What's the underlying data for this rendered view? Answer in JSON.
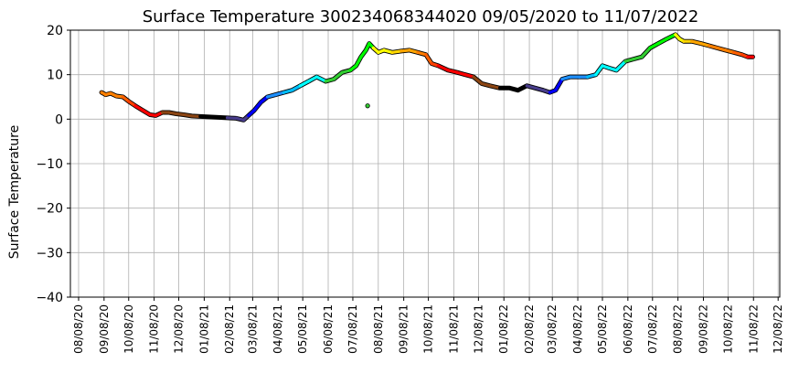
{
  "chart_data": {
    "type": "line",
    "title": "Surface Temperature 300234068344020  09/05/2020 to 11/07/2022",
    "xlabel": "",
    "ylabel": "Surface Temperature",
    "ylim": [
      -40,
      20
    ],
    "yticks": [
      "20",
      "10",
      "0",
      "−10",
      "−20",
      "−30",
      "−40"
    ],
    "xlim": [
      "2020-07-29",
      "2022-12-10"
    ],
    "xticks": [
      "08/08/20",
      "09/08/20",
      "10/08/20",
      "11/08/20",
      "12/08/20",
      "01/08/21",
      "02/08/21",
      "03/08/21",
      "04/08/21",
      "05/08/21",
      "06/08/21",
      "07/08/21",
      "08/08/21",
      "09/08/21",
      "10/08/21",
      "11/08/21",
      "12/08/21",
      "01/08/22",
      "02/08/22",
      "03/08/22",
      "04/08/22",
      "05/08/22",
      "06/08/22",
      "07/08/22",
      "08/08/22",
      "09/08/22",
      "10/08/22",
      "11/08/22",
      "12/08/22"
    ],
    "grid": true,
    "series": [
      {
        "x": [
          "2020-09-05",
          "2020-09-10",
          "2020-09-16",
          "2020-09-23",
          "2020-10-01",
          "2020-10-08",
          "2020-10-16",
          "2020-10-25",
          "2020-11-03",
          "2020-11-10",
          "2020-11-18",
          "2020-11-26",
          "2020-12-05",
          "2020-12-14",
          "2020-12-24",
          "2021-01-03",
          "2021-01-14",
          "2021-01-25",
          "2021-02-05",
          "2021-02-16",
          "2021-02-25",
          "2021-03-03",
          "2021-03-10",
          "2021-03-18",
          "2021-03-26",
          "2021-04-05",
          "2021-04-15",
          "2021-04-25",
          "2021-05-05",
          "2021-05-15",
          "2021-05-25",
          "2021-06-05",
          "2021-06-15",
          "2021-06-25",
          "2021-07-05",
          "2021-07-12",
          "2021-07-18",
          "2021-07-24",
          "2021-07-28",
          "2021-08-02",
          "2021-08-08",
          "2021-08-15",
          "2021-08-25",
          "2021-09-05",
          "2021-09-15",
          "2021-09-25",
          "2021-10-05",
          "2021-10-12",
          "2021-10-20",
          "2021-11-01",
          "2021-11-12",
          "2021-11-22",
          "2021-12-02",
          "2021-12-12",
          "2021-12-22",
          "2022-01-03",
          "2022-01-15",
          "2022-01-25",
          "2022-02-05",
          "2022-02-15",
          "2022-02-25",
          "2022-03-05",
          "2022-03-12",
          "2022-03-20",
          "2022-03-30",
          "2022-04-10",
          "2022-04-20",
          "2022-04-30",
          "2022-05-08",
          "2022-05-16",
          "2022-05-25",
          "2022-06-05",
          "2022-06-15",
          "2022-06-25",
          "2022-07-05",
          "2022-07-15",
          "2022-07-25",
          "2022-08-05",
          "2022-08-10",
          "2022-08-15",
          "2022-08-25",
          "2022-09-05",
          "2022-09-15",
          "2022-09-25",
          "2022-10-05",
          "2022-10-15",
          "2022-10-25",
          "2022-11-01",
          "2022-11-07"
        ],
        "y": [
          6,
          5.5,
          5.8,
          5.2,
          5,
          4,
          3,
          2,
          1,
          0.8,
          1.5,
          1.5,
          1.2,
          1,
          0.7,
          0.6,
          0.5,
          0.4,
          0.3,
          0.2,
          -0.2,
          0.8,
          2,
          3.8,
          5,
          5.5,
          6,
          6.5,
          7.5,
          8.5,
          9.5,
          8.5,
          9,
          10.5,
          11,
          12,
          14,
          15.5,
          17,
          16,
          15,
          15.5,
          15,
          15.3,
          15.5,
          15,
          14.5,
          12.5,
          12,
          11,
          10.5,
          10,
          9.5,
          8,
          7.5,
          7,
          7,
          6.5,
          7.5,
          7,
          6.5,
          6,
          6.5,
          9,
          9.5,
          9.5,
          9.5,
          10,
          12,
          11.5,
          11,
          13,
          13.5,
          14,
          16,
          17,
          18,
          19,
          18,
          17.5,
          17.5,
          17,
          16.5,
          16,
          15.5,
          15,
          14.5,
          14,
          14
        ],
        "colors": [
          "#ff8000",
          "#ff8000",
          "#ff8000",
          "#ff8000",
          "#ff6000",
          "#ff4000",
          "#ff0000",
          "#ff0000",
          "#ff0000",
          "#ff0000",
          "#8b4513",
          "#8b4513",
          "#8b4513",
          "#8b4513",
          "#8b4513",
          "#000000",
          "#000000",
          "#000000",
          "#483d8b",
          "#483d8b",
          "#483d8b",
          "#0000ff",
          "#0000ff",
          "#0000ff",
          "#1e90ff",
          "#1e90ff",
          "#00bfff",
          "#00bfff",
          "#00ffff",
          "#00ffff",
          "#00ffff",
          "#32cd32",
          "#32cd32",
          "#32cd32",
          "#00ff00",
          "#00ff00",
          "#00ff00",
          "#00ff00",
          "#00ff00",
          "#ffff00",
          "#ffff00",
          "#ffff00",
          "#ffd700",
          "#ffa500",
          "#ffa500",
          "#ff8000",
          "#ff6000",
          "#ff4000",
          "#ff0000",
          "#ff0000",
          "#ff0000",
          "#ff0000",
          "#8b4513",
          "#8b4513",
          "#8b4513",
          "#000000",
          "#000000",
          "#000000",
          "#483d8b",
          "#483d8b",
          "#483d8b",
          "#0000ff",
          "#0000ff",
          "#1e90ff",
          "#1e90ff",
          "#1e90ff",
          "#00bfff",
          "#00ffff",
          "#00ffff",
          "#00ffff",
          "#00ffff",
          "#32cd32",
          "#32cd32",
          "#32cd32",
          "#00ff00",
          "#00ff00",
          "#00ff00",
          "#ffff00",
          "#ffff00",
          "#ffd700",
          "#ffa500",
          "#ffa500",
          "#ff8000",
          "#ff8000",
          "#ff8000",
          "#ff6000",
          "#ff4000",
          "#ff0000",
          "#ff0000"
        ]
      }
    ],
    "outliers": [
      {
        "x": "2021-07-26",
        "y": 3,
        "color": "#32cd32"
      }
    ]
  }
}
